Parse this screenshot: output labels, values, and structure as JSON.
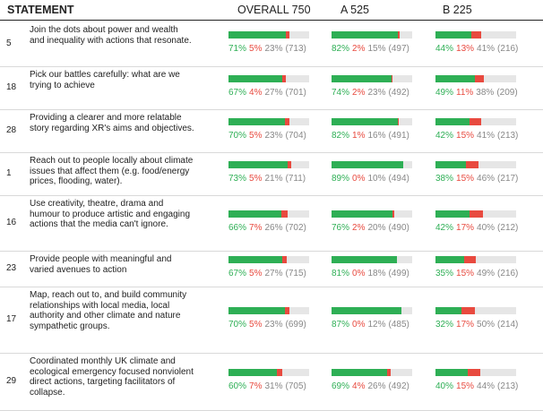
{
  "header": {
    "statement": "STATEMENT",
    "columns": [
      "OVERALL 750",
      "A 525",
      "B 225"
    ]
  },
  "colors": {
    "agree": "#2eaf55",
    "disagree": "#e84a3f",
    "neutral": "#e6e6e6"
  },
  "chart_data": {
    "type": "table",
    "columns": [
      "OVERALL 750",
      "A 525",
      "B 225"
    ],
    "rows": [
      {
        "num": "5",
        "statement": "Join the dots about power and wealth and inequality with actions that resonate.",
        "cells": [
          {
            "agree": 71,
            "disagree": 5,
            "pass": 23,
            "count": 713,
            "agree_label": "71%",
            "disagree_label": "5%",
            "pass_label": "23%",
            "count_label": "(713)"
          },
          {
            "agree": 82,
            "disagree": 2,
            "pass": 15,
            "count": 497,
            "agree_label": "82%",
            "disagree_label": "2%",
            "pass_label": "15%",
            "count_label": "(497)"
          },
          {
            "agree": 44,
            "disagree": 13,
            "pass": 41,
            "count": 216,
            "agree_label": "44%",
            "disagree_label": "13%",
            "pass_label": "41%",
            "count_label": "(216)"
          }
        ]
      },
      {
        "num": "18",
        "statement": "Pick our battles carefully: what are we trying to achieve",
        "cells": [
          {
            "agree": 67,
            "disagree": 4,
            "pass": 27,
            "count": 701,
            "agree_label": "67%",
            "disagree_label": "4%",
            "pass_label": "27%",
            "count_label": "(701)"
          },
          {
            "agree": 74,
            "disagree": 2,
            "pass": 23,
            "count": 492,
            "agree_label": "74%",
            "disagree_label": "2%",
            "pass_label": "23%",
            "count_label": "(492)"
          },
          {
            "agree": 49,
            "disagree": 11,
            "pass": 38,
            "count": 209,
            "agree_label": "49%",
            "disagree_label": "11%",
            "pass_label": "38%",
            "count_label": "(209)"
          }
        ]
      },
      {
        "num": "28",
        "statement": "Providing a clearer and more relatable story regarding XR's aims and objectives.",
        "cells": [
          {
            "agree": 70,
            "disagree": 5,
            "pass": 23,
            "count": 704,
            "agree_label": "70%",
            "disagree_label": "5%",
            "pass_label": "23%",
            "count_label": "(704)"
          },
          {
            "agree": 82,
            "disagree": 1,
            "pass": 16,
            "count": 491,
            "agree_label": "82%",
            "disagree_label": "1%",
            "pass_label": "16%",
            "count_label": "(491)"
          },
          {
            "agree": 42,
            "disagree": 15,
            "pass": 41,
            "count": 213,
            "agree_label": "42%",
            "disagree_label": "15%",
            "pass_label": "41%",
            "count_label": "(213)"
          }
        ]
      },
      {
        "num": "1",
        "statement": "Reach out to people locally about climate issues that affect them (e.g. food/energy prices, flooding, water).",
        "cells": [
          {
            "agree": 73,
            "disagree": 5,
            "pass": 21,
            "count": 711,
            "agree_label": "73%",
            "disagree_label": "5%",
            "pass_label": "21%",
            "count_label": "(711)"
          },
          {
            "agree": 89,
            "disagree": 0,
            "pass": 10,
            "count": 494,
            "agree_label": "89%",
            "disagree_label": "0%",
            "pass_label": "10%",
            "count_label": "(494)"
          },
          {
            "agree": 38,
            "disagree": 15,
            "pass": 46,
            "count": 217,
            "agree_label": "38%",
            "disagree_label": "15%",
            "pass_label": "46%",
            "count_label": "(217)"
          }
        ]
      },
      {
        "num": "16",
        "statement": "Use creativity, theatre, drama and humour to produce artistic and engaging actions that the media can't ignore.",
        "cells": [
          {
            "agree": 66,
            "disagree": 7,
            "pass": 26,
            "count": 702,
            "agree_label": "66%",
            "disagree_label": "7%",
            "pass_label": "26%",
            "count_label": "(702)"
          },
          {
            "agree": 76,
            "disagree": 2,
            "pass": 20,
            "count": 490,
            "agree_label": "76%",
            "disagree_label": "2%",
            "pass_label": "20%",
            "count_label": "(490)"
          },
          {
            "agree": 42,
            "disagree": 17,
            "pass": 40,
            "count": 212,
            "agree_label": "42%",
            "disagree_label": "17%",
            "pass_label": "40%",
            "count_label": "(212)"
          }
        ]
      },
      {
        "num": "23",
        "statement": "Provide people with meaningful and varied avenues to action",
        "cells": [
          {
            "agree": 67,
            "disagree": 5,
            "pass": 27,
            "count": 715,
            "agree_label": "67%",
            "disagree_label": "5%",
            "pass_label": "27%",
            "count_label": "(715)"
          },
          {
            "agree": 81,
            "disagree": 0,
            "pass": 18,
            "count": 499,
            "agree_label": "81%",
            "disagree_label": "0%",
            "pass_label": "18%",
            "count_label": "(499)"
          },
          {
            "agree": 35,
            "disagree": 15,
            "pass": 49,
            "count": 216,
            "agree_label": "35%",
            "disagree_label": "15%",
            "pass_label": "49%",
            "count_label": "(216)"
          }
        ]
      },
      {
        "num": "17",
        "statement": "Map, reach out to, and build community relationships with local media, local authority and other climate and nature sympathetic groups.",
        "cells": [
          {
            "agree": 70,
            "disagree": 5,
            "pass": 23,
            "count": 699,
            "agree_label": "70%",
            "disagree_label": "5%",
            "pass_label": "23%",
            "count_label": "(699)"
          },
          {
            "agree": 87,
            "disagree": 0,
            "pass": 12,
            "count": 485,
            "agree_label": "87%",
            "disagree_label": "0%",
            "pass_label": "12%",
            "count_label": "(485)"
          },
          {
            "agree": 32,
            "disagree": 17,
            "pass": 50,
            "count": 214,
            "agree_label": "32%",
            "disagree_label": "17%",
            "pass_label": "50%",
            "count_label": "(214)"
          }
        ]
      },
      {
        "num": "29",
        "statement": "Coordinated monthly UK climate and ecological emergency focused nonviolent direct actions, targeting facilitators of collapse.",
        "cells": [
          {
            "agree": 60,
            "disagree": 7,
            "pass": 31,
            "count": 705,
            "agree_label": "60%",
            "disagree_label": "7%",
            "pass_label": "31%",
            "count_label": "(705)"
          },
          {
            "agree": 69,
            "disagree": 4,
            "pass": 26,
            "count": 492,
            "agree_label": "69%",
            "disagree_label": "4%",
            "pass_label": "26%",
            "count_label": "(492)"
          },
          {
            "agree": 40,
            "disagree": 15,
            "pass": 44,
            "count": 213,
            "agree_label": "40%",
            "disagree_label": "15%",
            "pass_label": "44%",
            "count_label": "(213)"
          }
        ]
      }
    ]
  }
}
